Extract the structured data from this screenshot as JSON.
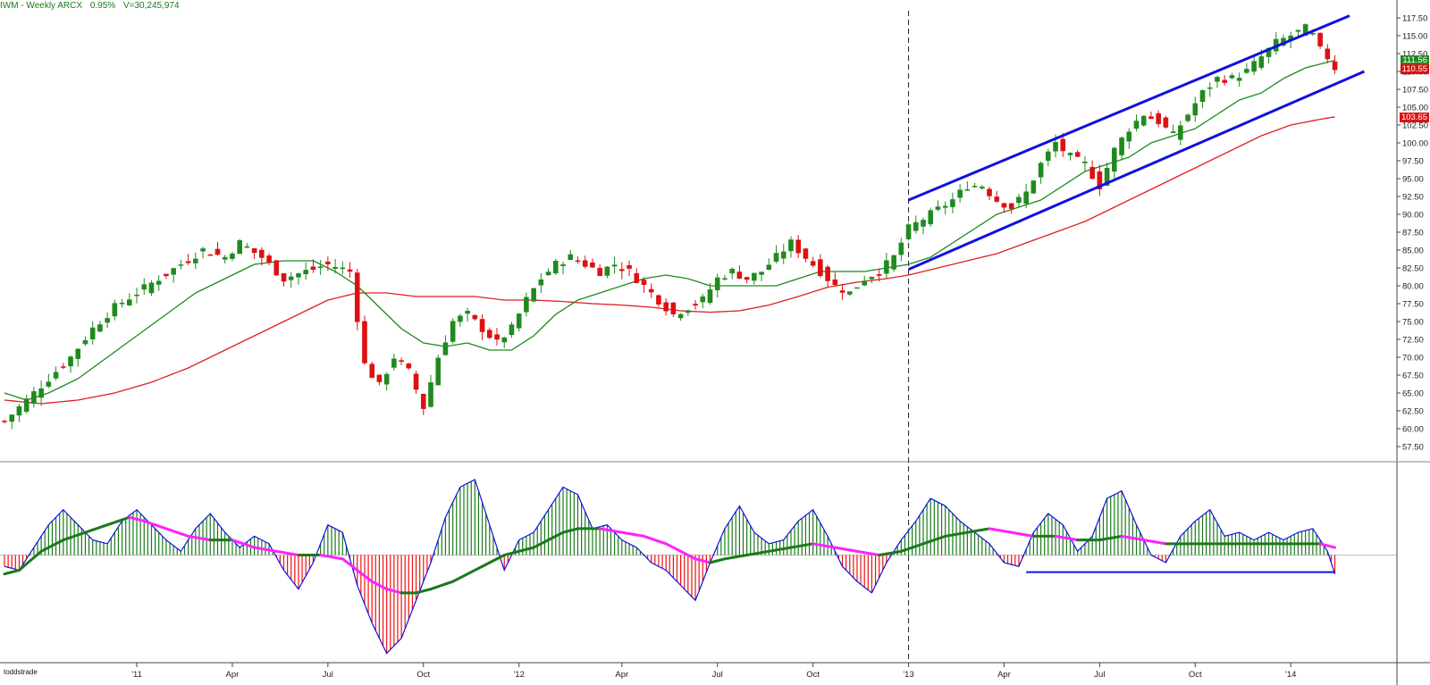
{
  "header": {
    "symbol": "IWM - Weekly  ARCX",
    "change": "0.95%",
    "volume": "V=30,245,974"
  },
  "watermark": "toddstrade",
  "last_prices": {
    "close": "110.55",
    "sma20": "111.56",
    "sma50": "103.65"
  },
  "colors": {
    "up": "#1f8a1f",
    "down": "#dd1111",
    "sma_short": "#1e8a1e",
    "sma_long": "#e02020",
    "trend": "#1010e0",
    "signal_up": "#1a7a1a",
    "signal_down": "#ff22ff",
    "axis": "#333333"
  },
  "chart_data": [
    {
      "type": "candlestick",
      "title": "IWM - Weekly",
      "y_ticks": [
        "57.50",
        "60.00",
        "62.50",
        "65.00",
        "67.50",
        "70.00",
        "72.50",
        "75.00",
        "77.50",
        "80.00",
        "82.50",
        "85.00",
        "87.50",
        "90.00",
        "92.50",
        "95.00",
        "97.50",
        "100.00",
        "102.50",
        "105.00",
        "107.50",
        "110.00",
        "112.50",
        "115.00",
        "117.50"
      ],
      "ylim": [
        56,
        119
      ],
      "x_ticks": [
        {
          "label": "'11",
          "week": 18
        },
        {
          "label": "Apr",
          "week": 31
        },
        {
          "label": "Jul",
          "week": 44
        },
        {
          "label": "Oct",
          "week": 57
        },
        {
          "label": "'12",
          "week": 70
        },
        {
          "label": "Apr",
          "week": 84
        },
        {
          "label": "Jul",
          "week": 97
        },
        {
          "label": "Oct",
          "week": 110
        },
        {
          "label": "'13",
          "week": 123
        },
        {
          "label": "Apr",
          "week": 136
        },
        {
          "label": "Jul",
          "week": 149
        },
        {
          "label": "Oct",
          "week": 162
        },
        {
          "label": "'14",
          "week": 175
        }
      ],
      "weeks": 183,
      "close_path": [
        [
          0,
          61
        ],
        [
          2,
          63
        ],
        [
          4,
          65
        ],
        [
          6,
          67
        ],
        [
          9,
          70
        ],
        [
          12,
          74
        ],
        [
          15,
          77
        ],
        [
          18,
          79
        ],
        [
          21,
          81
        ],
        [
          24,
          83
        ],
        [
          27,
          85
        ],
        [
          30,
          84
        ],
        [
          32,
          86
        ],
        [
          35,
          84
        ],
        [
          38,
          81
        ],
        [
          41,
          82
        ],
        [
          44,
          83
        ],
        [
          47,
          82
        ],
        [
          49,
          69
        ],
        [
          51,
          66
        ],
        [
          53,
          70
        ],
        [
          55,
          68
        ],
        [
          57,
          63
        ],
        [
          59,
          70
        ],
        [
          61,
          75
        ],
        [
          63,
          76
        ],
        [
          65,
          74
        ],
        [
          67,
          72
        ],
        [
          69,
          74
        ],
        [
          71,
          78
        ],
        [
          73,
          81
        ],
        [
          75,
          83
        ],
        [
          77,
          84
        ],
        [
          79,
          83
        ],
        [
          81,
          82
        ],
        [
          83,
          83
        ],
        [
          85,
          82
        ],
        [
          87,
          80
        ],
        [
          89,
          78
        ],
        [
          91,
          76
        ],
        [
          93,
          77
        ],
        [
          95,
          78
        ],
        [
          97,
          81
        ],
        [
          99,
          82
        ],
        [
          101,
          81
        ],
        [
          103,
          82
        ],
        [
          105,
          84
        ],
        [
          107,
          86
        ],
        [
          109,
          84
        ],
        [
          111,
          82
        ],
        [
          113,
          80
        ],
        [
          115,
          79
        ],
        [
          117,
          81
        ],
        [
          119,
          82
        ],
        [
          121,
          84
        ],
        [
          123,
          88
        ],
        [
          126,
          90
        ],
        [
          129,
          92
        ],
        [
          131,
          94
        ],
        [
          133,
          94
        ],
        [
          135,
          92
        ],
        [
          137,
          91
        ],
        [
          139,
          93
        ],
        [
          141,
          97
        ],
        [
          143,
          100
        ],
        [
          145,
          98
        ],
        [
          147,
          97
        ],
        [
          149,
          94
        ],
        [
          151,
          99
        ],
        [
          153,
          102
        ],
        [
          155,
          104
        ],
        [
          157,
          103
        ],
        [
          159,
          101
        ],
        [
          161,
          104
        ],
        [
          163,
          107
        ],
        [
          165,
          109
        ],
        [
          167,
          109
        ],
        [
          169,
          110
        ],
        [
          171,
          112
        ],
        [
          173,
          114
        ],
        [
          175,
          115
        ],
        [
          177,
          116
        ],
        [
          178,
          115
        ],
        [
          179,
          113
        ],
        [
          180,
          112
        ],
        [
          181,
          110.5
        ]
      ],
      "sma20_path": [
        [
          0,
          65
        ],
        [
          3,
          64
        ],
        [
          6,
          65
        ],
        [
          10,
          67
        ],
        [
          14,
          70
        ],
        [
          18,
          73
        ],
        [
          22,
          76
        ],
        [
          26,
          79
        ],
        [
          30,
          81
        ],
        [
          34,
          83
        ],
        [
          38,
          83.5
        ],
        [
          42,
          83.5
        ],
        [
          45,
          82
        ],
        [
          48,
          80
        ],
        [
          51,
          77
        ],
        [
          54,
          74
        ],
        [
          57,
          72
        ],
        [
          60,
          71.5
        ],
        [
          63,
          72
        ],
        [
          66,
          71
        ],
        [
          69,
          71
        ],
        [
          72,
          73
        ],
        [
          75,
          76
        ],
        [
          78,
          78
        ],
        [
          81,
          79
        ],
        [
          84,
          80
        ],
        [
          87,
          81
        ],
        [
          90,
          81.5
        ],
        [
          93,
          81
        ],
        [
          96,
          80
        ],
        [
          99,
          80
        ],
        [
          102,
          80
        ],
        [
          105,
          80
        ],
        [
          108,
          81
        ],
        [
          111,
          82
        ],
        [
          114,
          82
        ],
        [
          117,
          82
        ],
        [
          120,
          82.5
        ],
        [
          123,
          83
        ],
        [
          126,
          84
        ],
        [
          129,
          86
        ],
        [
          132,
          88
        ],
        [
          135,
          90
        ],
        [
          138,
          91
        ],
        [
          141,
          92
        ],
        [
          144,
          94
        ],
        [
          147,
          96
        ],
        [
          150,
          97
        ],
        [
          153,
          98
        ],
        [
          156,
          100
        ],
        [
          159,
          101
        ],
        [
          162,
          102
        ],
        [
          165,
          104
        ],
        [
          168,
          106
        ],
        [
          171,
          107
        ],
        [
          174,
          109
        ],
        [
          177,
          110.5
        ],
        [
          181,
          111.56
        ]
      ],
      "sma50_path": [
        [
          0,
          64
        ],
        [
          5,
          63.5
        ],
        [
          10,
          64
        ],
        [
          15,
          65
        ],
        [
          20,
          66.5
        ],
        [
          25,
          68.5
        ],
        [
          30,
          71
        ],
        [
          35,
          73.5
        ],
        [
          40,
          76
        ],
        [
          44,
          78
        ],
        [
          48,
          79
        ],
        [
          52,
          79
        ],
        [
          56,
          78.5
        ],
        [
          60,
          78.5
        ],
        [
          64,
          78.5
        ],
        [
          68,
          78
        ],
        [
          72,
          78
        ],
        [
          76,
          77.8
        ],
        [
          80,
          77.5
        ],
        [
          84,
          77.3
        ],
        [
          88,
          77
        ],
        [
          92,
          76.5
        ],
        [
          96,
          76.3
        ],
        [
          100,
          76.5
        ],
        [
          104,
          77.3
        ],
        [
          108,
          78.5
        ],
        [
          112,
          79.8
        ],
        [
          116,
          80.5
        ],
        [
          120,
          81
        ],
        [
          123,
          81.5
        ],
        [
          127,
          82.5
        ],
        [
          131,
          83.5
        ],
        [
          135,
          84.5
        ],
        [
          139,
          86
        ],
        [
          143,
          87.5
        ],
        [
          147,
          89
        ],
        [
          151,
          91
        ],
        [
          155,
          93
        ],
        [
          159,
          95
        ],
        [
          163,
          97
        ],
        [
          167,
          99
        ],
        [
          171,
          101
        ],
        [
          175,
          102.5
        ],
        [
          179,
          103.3
        ],
        [
          181,
          103.65
        ]
      ],
      "trend_lines": [
        {
          "name": "upper-channel",
          "from": [
            123,
            92.0
          ],
          "to": [
            183,
            117.8
          ]
        },
        {
          "name": "lower-channel",
          "from": [
            123,
            82.3
          ],
          "to": [
            185,
            110.0
          ]
        }
      ],
      "vertical_marker_week": 123
    },
    {
      "type": "histogram",
      "indicator_path": [
        [
          0,
          -3
        ],
        [
          2,
          -4
        ],
        [
          4,
          2
        ],
        [
          6,
          8
        ],
        [
          8,
          12
        ],
        [
          10,
          8
        ],
        [
          12,
          4
        ],
        [
          14,
          3
        ],
        [
          16,
          9
        ],
        [
          18,
          12
        ],
        [
          20,
          8
        ],
        [
          22,
          4
        ],
        [
          24,
          1
        ],
        [
          26,
          7
        ],
        [
          28,
          11
        ],
        [
          30,
          6
        ],
        [
          32,
          2
        ],
        [
          34,
          5
        ],
        [
          36,
          3
        ],
        [
          38,
          -4
        ],
        [
          40,
          -9
        ],
        [
          42,
          -2
        ],
        [
          44,
          8
        ],
        [
          46,
          6
        ],
        [
          48,
          -8
        ],
        [
          50,
          -18
        ],
        [
          52,
          -26
        ],
        [
          54,
          -22
        ],
        [
          56,
          -12
        ],
        [
          58,
          -2
        ],
        [
          60,
          10
        ],
        [
          62,
          18
        ],
        [
          64,
          20
        ],
        [
          66,
          8
        ],
        [
          68,
          -4
        ],
        [
          70,
          4
        ],
        [
          72,
          6
        ],
        [
          74,
          12
        ],
        [
          76,
          18
        ],
        [
          78,
          16
        ],
        [
          80,
          7
        ],
        [
          82,
          8
        ],
        [
          84,
          4
        ],
        [
          86,
          2
        ],
        [
          88,
          -2
        ],
        [
          90,
          -4
        ],
        [
          92,
          -8
        ],
        [
          94,
          -12
        ],
        [
          96,
          -2
        ],
        [
          98,
          7
        ],
        [
          100,
          13
        ],
        [
          102,
          6
        ],
        [
          104,
          3
        ],
        [
          106,
          4
        ],
        [
          108,
          9
        ],
        [
          110,
          12
        ],
        [
          112,
          5
        ],
        [
          114,
          -3
        ],
        [
          116,
          -7
        ],
        [
          118,
          -10
        ],
        [
          120,
          -2
        ],
        [
          122,
          4
        ],
        [
          124,
          9
        ],
        [
          126,
          15
        ],
        [
          128,
          13
        ],
        [
          130,
          9
        ],
        [
          132,
          6
        ],
        [
          134,
          3
        ],
        [
          136,
          -2
        ],
        [
          138,
          -3
        ],
        [
          140,
          6
        ],
        [
          142,
          11
        ],
        [
          144,
          8
        ],
        [
          146,
          1
        ],
        [
          148,
          5
        ],
        [
          150,
          15
        ],
        [
          152,
          17
        ],
        [
          154,
          8
        ],
        [
          156,
          0
        ],
        [
          158,
          -2
        ],
        [
          160,
          5
        ],
        [
          162,
          9
        ],
        [
          164,
          12
        ],
        [
          166,
          5
        ],
        [
          168,
          6
        ],
        [
          170,
          4
        ],
        [
          172,
          6
        ],
        [
          174,
          4
        ],
        [
          176,
          6
        ],
        [
          178,
          7
        ],
        [
          180,
          1
        ],
        [
          181,
          -5
        ]
      ],
      "signal_path": [
        [
          0,
          -5
        ],
        [
          2,
          -4
        ],
        [
          5,
          1
        ],
        [
          8,
          4
        ],
        [
          11,
          6
        ],
        [
          14,
          8
        ],
        [
          17,
          10
        ],
        [
          19,
          9
        ],
        [
          22,
          7
        ],
        [
          25,
          5
        ],
        [
          28,
          4
        ],
        [
          31,
          4
        ],
        [
          34,
          2
        ],
        [
          37,
          1
        ],
        [
          40,
          0
        ],
        [
          43,
          0
        ],
        [
          46,
          -1
        ],
        [
          48,
          -4
        ],
        [
          50,
          -7
        ],
        [
          52,
          -9
        ],
        [
          54,
          -10
        ],
        [
          56,
          -10
        ],
        [
          58,
          -9
        ],
        [
          61,
          -7
        ],
        [
          64,
          -4
        ],
        [
          66,
          -2
        ],
        [
          68,
          0
        ],
        [
          70,
          1
        ],
        [
          72,
          2
        ],
        [
          74,
          4
        ],
        [
          76,
          6
        ],
        [
          78,
          7
        ],
        [
          81,
          7
        ],
        [
          84,
          6
        ],
        [
          87,
          5
        ],
        [
          90,
          3
        ],
        [
          92,
          1
        ],
        [
          94,
          -1
        ],
        [
          96,
          -2
        ],
        [
          98,
          -1
        ],
        [
          101,
          0
        ],
        [
          104,
          1
        ],
        [
          107,
          2
        ],
        [
          110,
          3
        ],
        [
          113,
          2
        ],
        [
          116,
          1
        ],
        [
          119,
          0
        ],
        [
          122,
          1
        ],
        [
          125,
          3
        ],
        [
          128,
          5
        ],
        [
          131,
          6
        ],
        [
          134,
          7
        ],
        [
          137,
          6
        ],
        [
          140,
          5
        ],
        [
          143,
          5
        ],
        [
          146,
          4
        ],
        [
          149,
          4
        ],
        [
          152,
          5
        ],
        [
          155,
          4
        ],
        [
          158,
          3
        ],
        [
          161,
          3
        ],
        [
          164,
          3
        ],
        [
          167,
          3
        ],
        [
          170,
          3
        ],
        [
          173,
          3
        ],
        [
          176,
          3
        ],
        [
          179,
          3
        ],
        [
          181,
          2
        ]
      ],
      "support_line": {
        "from": 139,
        "to": 181,
        "value": -4.5
      },
      "ylim": [
        -28,
        24
      ]
    }
  ]
}
